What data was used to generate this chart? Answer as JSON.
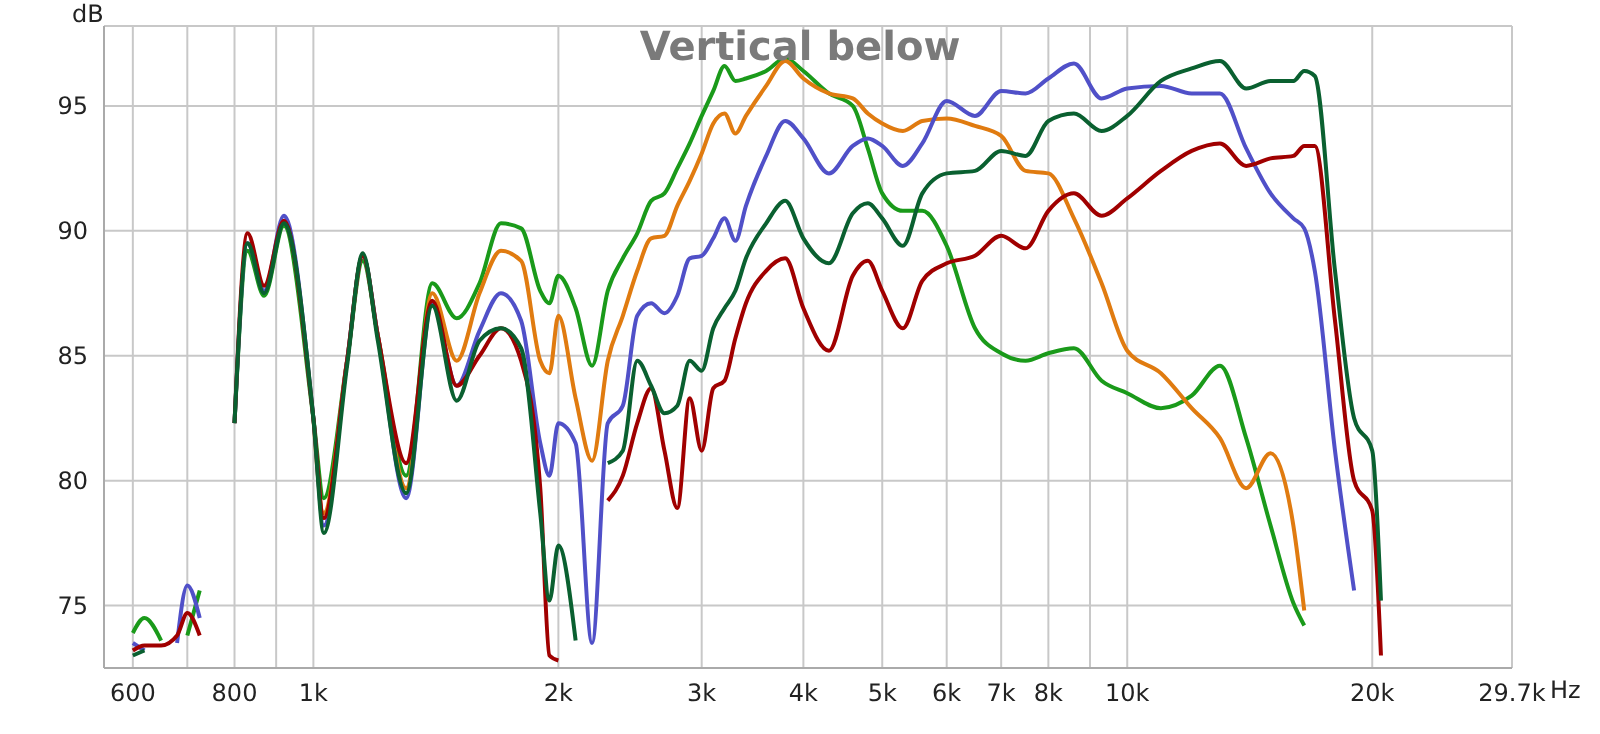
{
  "chart_data": {
    "type": "line",
    "title": "Vertical below",
    "ylabel": "dB",
    "x": [
      600,
      620,
      650,
      680,
      700,
      725,
      750,
      790,
      800,
      830,
      870,
      920,
      1000,
      1030,
      1100,
      1150,
      1200,
      1300,
      1400,
      1500,
      1600,
      1700,
      1800,
      1900,
      1950,
      2000,
      2100,
      2200,
      2300,
      2400,
      2500,
      2600,
      2700,
      2800,
      2900,
      3000,
      3100,
      3200,
      3300,
      3400,
      3600,
      3800,
      4000,
      4300,
      4600,
      4800,
      5000,
      5300,
      5600,
      6000,
      6500,
      7000,
      7500,
      8000,
      8600,
      9300,
      10000,
      11000,
      12000,
      13000,
      14000,
      15000,
      16000,
      16500,
      17000,
      18000,
      19000,
      20000,
      20500
    ],
    "series": [
      {
        "color": "#1a9a1a",
        "values": [
          73.9,
          74.5,
          73.6,
          null,
          73.8,
          75.6,
          null,
          null,
          82.3,
          89.2,
          87.4,
          90.2,
          82.5,
          79.3,
          84.8,
          88.8,
          85.8,
          80.2,
          87.9,
          86.5,
          87.9,
          90.3,
          90.1,
          87.6,
          87.1,
          88.2,
          86.9,
          84.6,
          87.6,
          88.9,
          89.9,
          91.2,
          91.5,
          92.5,
          93.5,
          94.6,
          95.6,
          96.6,
          96,
          96.1,
          96.4,
          96.9,
          96.4,
          95.5,
          95,
          93.3,
          91.5,
          90.8,
          90.8,
          89.4,
          86.1,
          85.1,
          84.8,
          85.1,
          85.3,
          84,
          83.5,
          82.9,
          83.4,
          84.6,
          81.7,
          78.2,
          75.1,
          74.2,
          null,
          null,
          null,
          null,
          null
        ]
      },
      {
        "color": "#e07b10",
        "values": [
          null,
          null,
          null,
          null,
          null,
          null,
          null,
          null,
          null,
          null,
          null,
          null,
          82.5,
          78.7,
          84.8,
          89,
          85.8,
          79.7,
          87.5,
          84.8,
          87.5,
          89.2,
          88.8,
          84.8,
          84.3,
          86.6,
          83.3,
          80.8,
          84.8,
          86.6,
          88.4,
          89.7,
          89.8,
          91,
          92,
          93.1,
          94.3,
          94.7,
          93.9,
          94.6,
          95.8,
          96.8,
          96.1,
          95.5,
          95.3,
          94.7,
          94.3,
          94,
          94.4,
          94.5,
          94.2,
          93.8,
          92.4,
          92.3,
          90.5,
          87.9,
          85.2,
          84.3,
          82.9,
          81.7,
          79.7,
          81.1,
          78.2,
          74.8,
          null,
          null,
          null,
          null,
          null
        ]
      },
      {
        "color": "#5050c8",
        "values": [
          73.5,
          73.2,
          null,
          73.5,
          75.8,
          74.5,
          null,
          null,
          82.3,
          89.5,
          87.6,
          90.6,
          82.5,
          78.2,
          84.8,
          89,
          85.8,
          79.3,
          87.1,
          83.8,
          86,
          87.5,
          86.4,
          81.5,
          80.2,
          82.3,
          81.5,
          73.5,
          82.3,
          83,
          86.6,
          87.1,
          86.7,
          87.4,
          88.9,
          89,
          89.7,
          90.5,
          89.6,
          91,
          93,
          94.4,
          93.7,
          92.3,
          93.4,
          93.7,
          93.4,
          92.6,
          93.5,
          95.2,
          94.6,
          95.6,
          95.5,
          96.1,
          96.7,
          95.3,
          95.7,
          95.8,
          95.5,
          95.5,
          93.3,
          91.5,
          90.5,
          90.1,
          88.4,
          81.2,
          75.6,
          null,
          null
        ]
      },
      {
        "color": "#a00000",
        "values": [
          73.2,
          73.4,
          73.4,
          73.8,
          74.7,
          73.8,
          null,
          null,
          82.3,
          89.9,
          87.8,
          90.4,
          82.5,
          78.5,
          84.8,
          89,
          85.8,
          80.7,
          87.2,
          83.8,
          85,
          86.1,
          84.8,
          79.7,
          73,
          72.8,
          null,
          null,
          79.2,
          80.2,
          82.3,
          83.7,
          81.2,
          78.9,
          83.3,
          81.2,
          83.7,
          84,
          85.7,
          87.1,
          88.4,
          88.9,
          86.9,
          85.2,
          88.2,
          88.8,
          87.6,
          86.1,
          88,
          88.7,
          89,
          89.8,
          89.3,
          90.8,
          91.5,
          90.6,
          91.3,
          92.4,
          93.2,
          93.5,
          92.6,
          92.9,
          93,
          93.4,
          93.4,
          86.4,
          80,
          78.8,
          73
        ]
      },
      {
        "color": "#0a6030",
        "values": [
          73,
          73.2,
          null,
          null,
          null,
          null,
          null,
          null,
          82.3,
          89.5,
          87.5,
          90.3,
          82.5,
          77.9,
          84.6,
          89.1,
          85.6,
          79.5,
          87,
          83.2,
          85.6,
          86.1,
          85.3,
          78.7,
          75.2,
          77.4,
          73.6,
          null,
          80.7,
          81.2,
          84.8,
          83.8,
          82.7,
          83,
          84.8,
          84.4,
          86.1,
          86.9,
          87.6,
          88.9,
          90.3,
          91.2,
          89.7,
          88.7,
          90.7,
          91.1,
          90.5,
          89.4,
          91.5,
          92.3,
          92.4,
          93.2,
          93,
          94.4,
          94.7,
          94,
          94.6,
          96,
          96.5,
          96.8,
          95.7,
          96,
          96,
          96.4,
          96.2,
          88.4,
          82.5,
          81.2,
          75.2
        ]
      }
    ],
    "log": "x",
    "xlim": [
      553,
      29700
    ],
    "xticks": [
      600,
      {
        "value": 700,
        "label": null
      },
      800,
      {
        "value": 900,
        "label": null
      },
      {
        "value": 1000,
        "label": "1k"
      },
      {
        "value": 2000,
        "label": "2k"
      },
      {
        "value": 3000,
        "label": "3k"
      },
      {
        "value": 4000,
        "label": "4k"
      },
      {
        "value": 5000,
        "label": "5k"
      },
      {
        "value": 6000,
        "label": "6k"
      },
      {
        "value": 7000,
        "label": "7k"
      },
      {
        "value": 8000,
        "label": "8k"
      },
      {
        "value": 9000,
        "label": null
      },
      {
        "value": 10000,
        "label": "10k"
      },
      {
        "value": 20000,
        "label": "20k"
      },
      {
        "value": 29700,
        "label": "29.7k"
      }
    ],
    "xlabel": "Hz",
    "ylim": [
      72.5,
      98.2
    ],
    "yticks": [
      75,
      80,
      85,
      90,
      95
    ],
    "grid": true,
    "line_style": "solid",
    "marker": "none"
  }
}
